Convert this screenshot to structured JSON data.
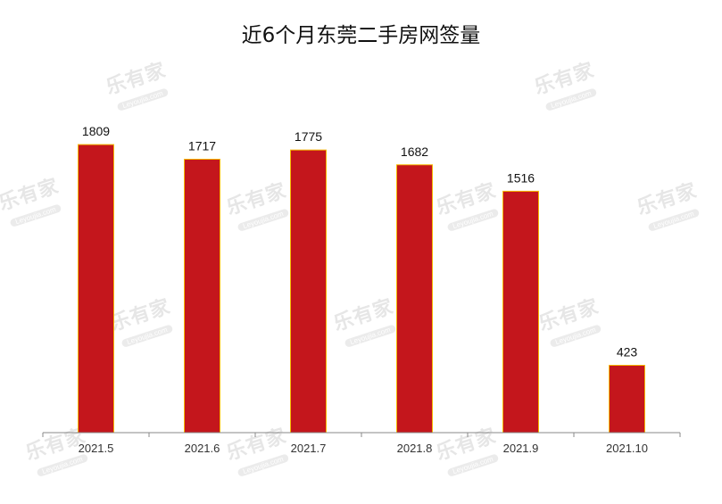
{
  "chart_data": {
    "type": "bar",
    "title": "近6个月东莞二手房网签量",
    "categories": [
      "2021.5",
      "2021.6",
      "2021.7",
      "2021.8",
      "2021.9",
      "2021.10"
    ],
    "values": [
      1809,
      1717,
      1775,
      1682,
      1516,
      423
    ],
    "xlabel": "",
    "ylabel": "",
    "ylim": [
      0,
      2000
    ],
    "grid": false,
    "bar_color": "#C4161C",
    "bar_border_color": "#F5B800"
  },
  "watermark": {
    "brand": "乐有家",
    "site": "Leyoujia.com"
  }
}
